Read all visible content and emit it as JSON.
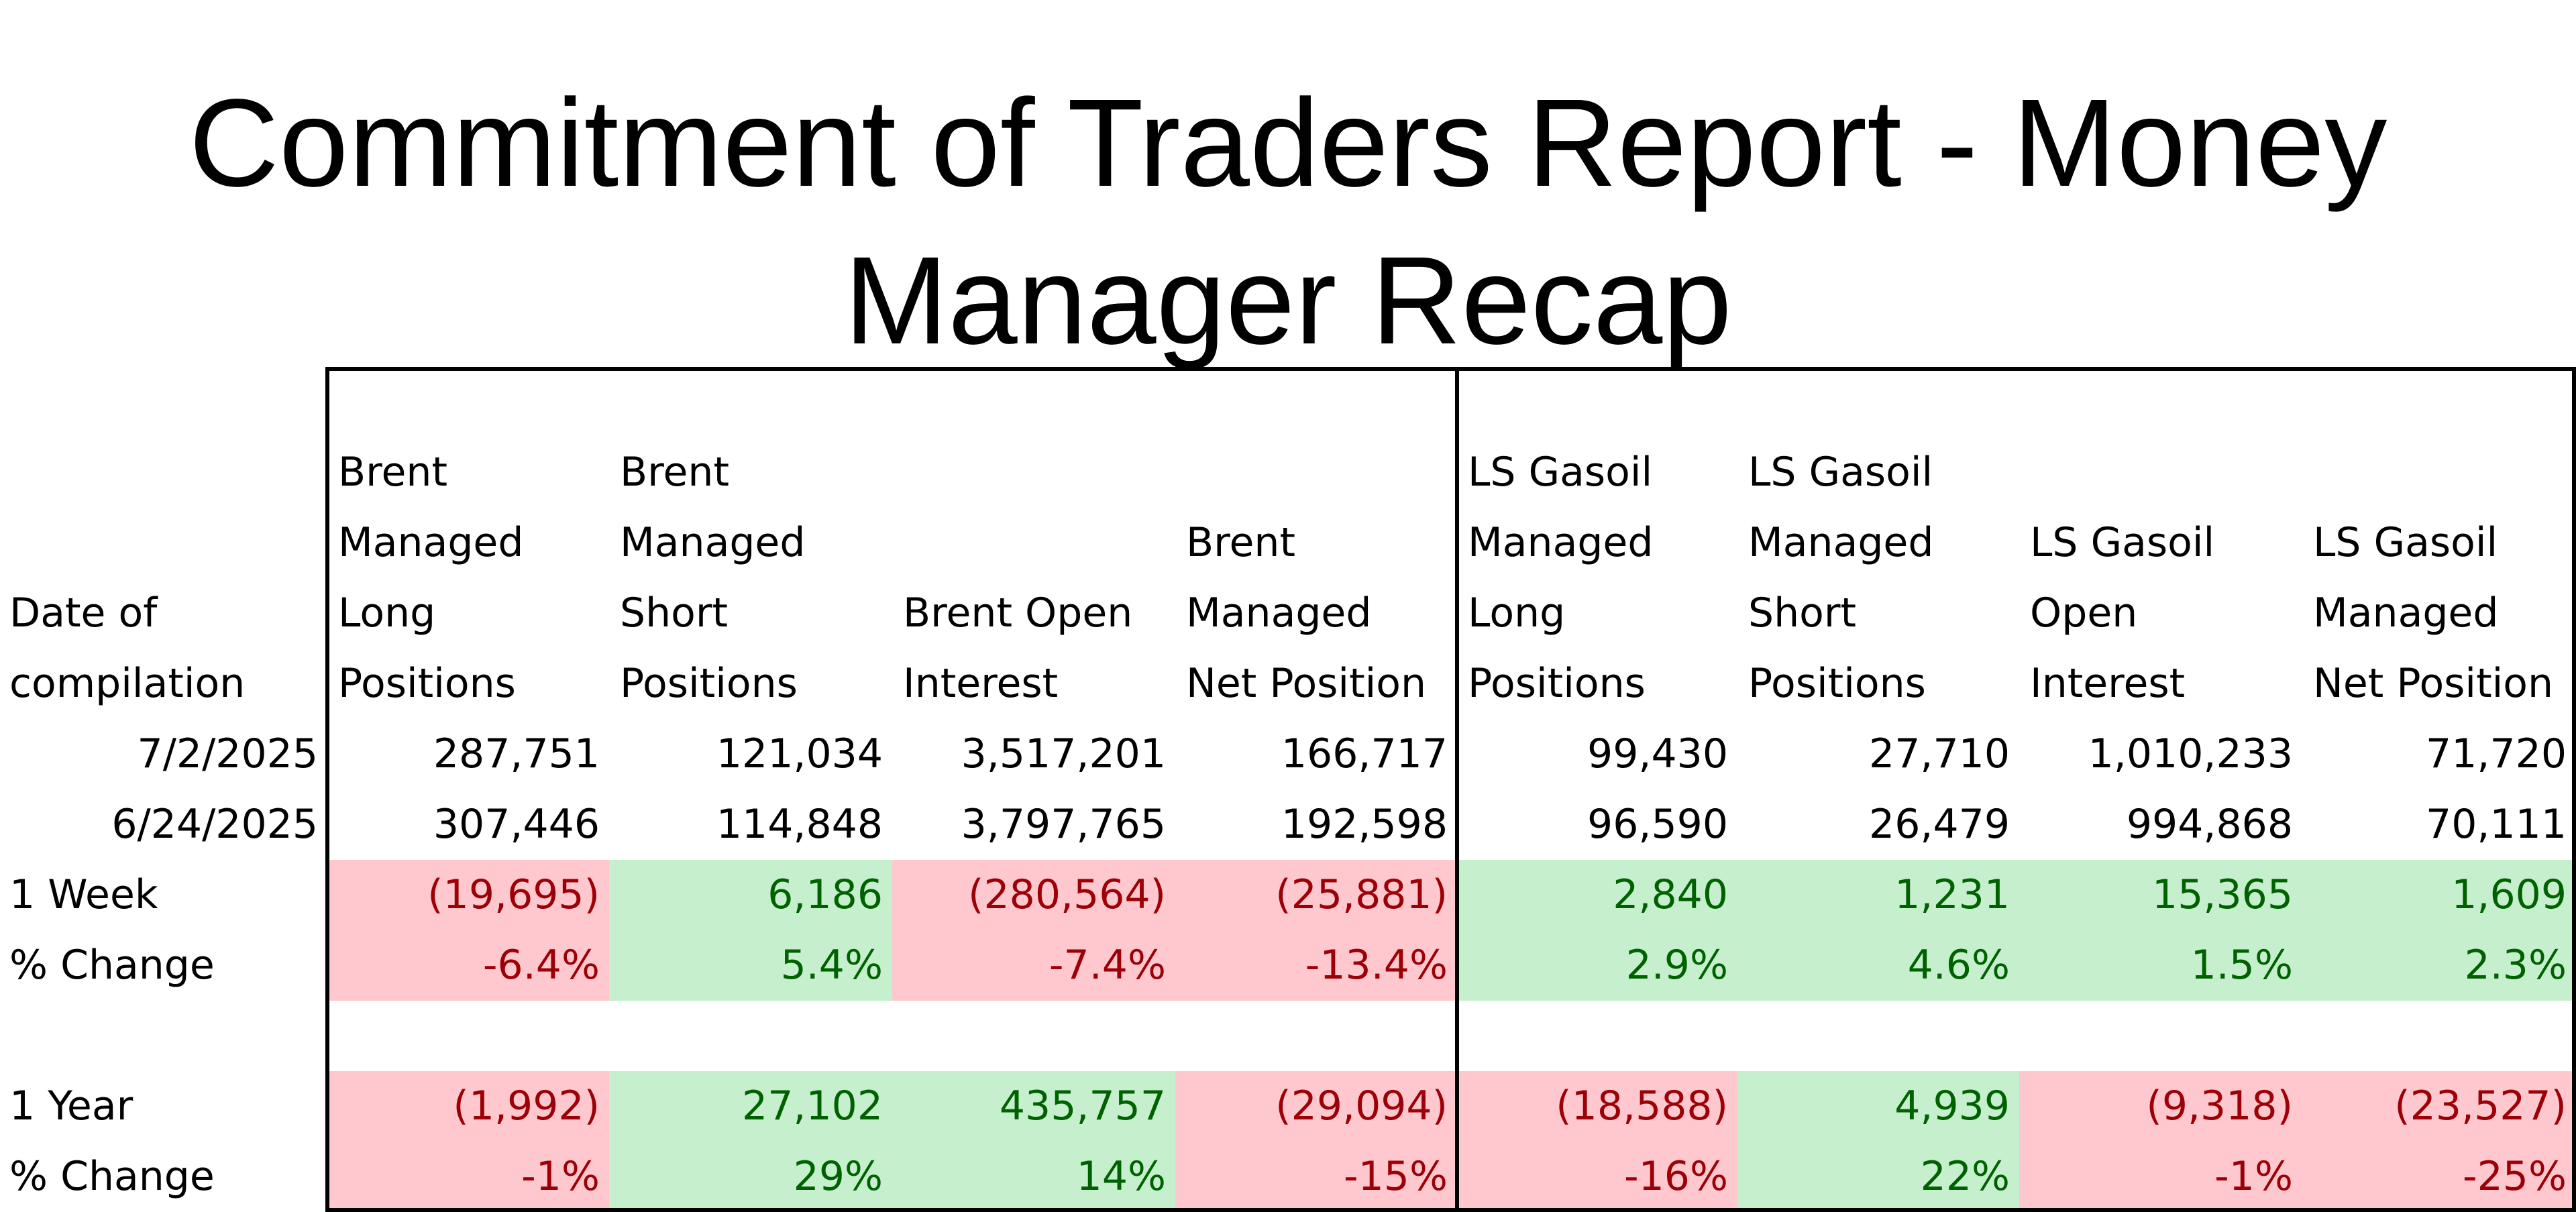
{
  "title_line1": "Commitment of Traders Report - Money",
  "title_line2": "Manager Recap",
  "header_label": "Date of compilation",
  "columns": [
    "Brent Managed Long Positions",
    "Brent Managed Short Positions",
    "Brent Open Interest",
    "Brent Managed Net Position",
    "LS Gasoil Managed Long Positions",
    "LS Gasoil Managed Short Positions",
    "LS Gasoil Open Interest",
    "LS Gasoil Managed Net Position"
  ],
  "rows": [
    {
      "label": "7/2/2025",
      "values": [
        "287,751",
        "121,034",
        "3,517,201",
        "166,717",
        "99,430",
        "27,710",
        "1,010,233",
        "71,720"
      ]
    },
    {
      "label": "6/24/2025",
      "values": [
        "307,446",
        "114,848",
        "3,797,765",
        "192,598",
        "96,590",
        "26,479",
        "994,868",
        "70,111"
      ]
    },
    {
      "label": "1 Week",
      "values": [
        "(19,695)",
        "6,186",
        "(280,564)",
        "(25,881)",
        "2,840",
        "1,231",
        "15,365",
        "1,609"
      ]
    },
    {
      "label": "% Change",
      "values": [
        "-6.4%",
        "5.4%",
        "-7.4%",
        "-13.4%",
        "2.9%",
        "4.6%",
        "1.5%",
        "2.3%"
      ]
    },
    {
      "label": "1 Year",
      "values": [
        "(1,992)",
        "27,102",
        "435,757",
        "(29,094)",
        "(18,588)",
        "4,939",
        "(9,318)",
        "(23,527)"
      ]
    },
    {
      "label": "% Change",
      "values": [
        "-1%",
        "29%",
        "14%",
        "-15%",
        "-16%",
        "22%",
        "-1%",
        "-25%"
      ]
    }
  ],
  "colors": {
    "negative_fill": "#ffc7ce",
    "negative_text": "#9c0006",
    "positive_fill": "#c6efce",
    "positive_text": "#006100"
  }
}
